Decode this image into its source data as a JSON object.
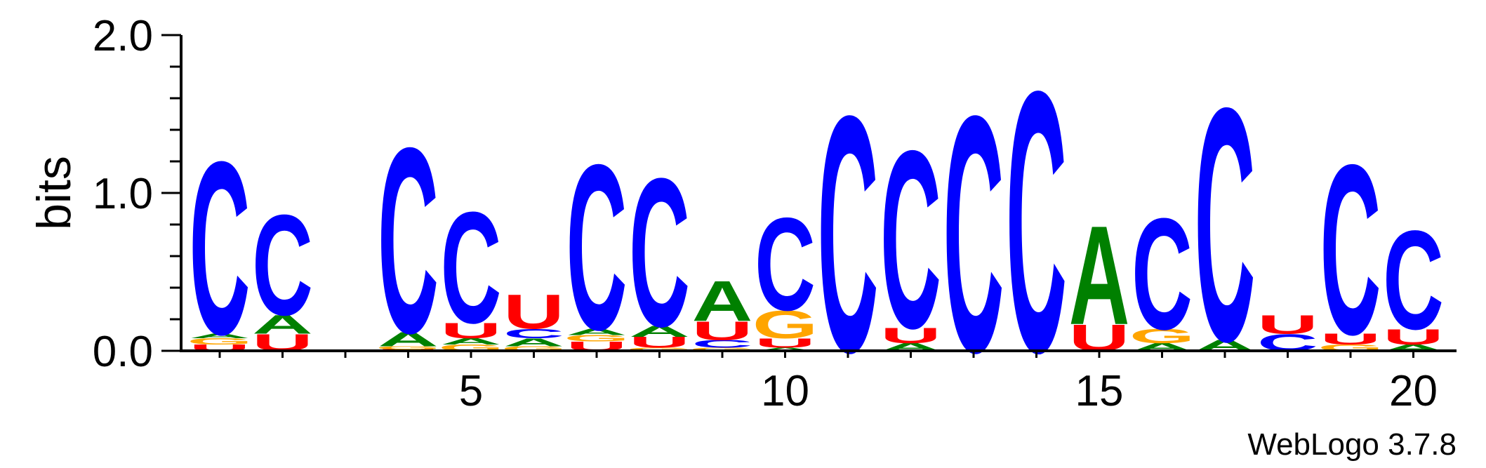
{
  "chart_data": {
    "type": "sequence-logo",
    "ylabel": "bits",
    "ylim": [
      0,
      2
    ],
    "y_ticks": [
      {
        "value": 0,
        "label": "0.0"
      },
      {
        "value": 1,
        "label": "1.0"
      },
      {
        "value": 2,
        "label": "2.0"
      }
    ],
    "x_range": [
      1,
      20
    ],
    "x_tick_labels": [
      {
        "position": 5,
        "label": "5"
      },
      {
        "position": 10,
        "label": "10"
      },
      {
        "position": 15,
        "label": "15"
      },
      {
        "position": 20,
        "label": "20"
      }
    ],
    "colors": {
      "A": "#008000",
      "C": "#0000ff",
      "G": "#ffa500",
      "U": "#ff0000"
    },
    "positions": [
      {
        "pos": 1,
        "stack": [
          [
            "U",
            0.04
          ],
          [
            "G",
            0.04
          ],
          [
            "A",
            0.03
          ],
          [
            "C",
            1.12
          ]
        ]
      },
      {
        "pos": 2,
        "stack": [
          [
            "U",
            0.11
          ],
          [
            "A",
            0.12
          ],
          [
            "C",
            0.65
          ]
        ]
      },
      {
        "pos": 3,
        "stack": []
      },
      {
        "pos": 4,
        "stack": [
          [
            "U",
            0.01
          ],
          [
            "G",
            0.02
          ],
          [
            "A",
            0.09
          ],
          [
            "C",
            1.2
          ]
        ]
      },
      {
        "pos": 5,
        "stack": [
          [
            "G",
            0.04
          ],
          [
            "A",
            0.04
          ],
          [
            "U",
            0.1
          ],
          [
            "C",
            0.72
          ]
        ]
      },
      {
        "pos": 6,
        "stack": [
          [
            "G",
            0.03
          ],
          [
            "A",
            0.05
          ],
          [
            "C",
            0.06
          ],
          [
            "U",
            0.22
          ]
        ]
      },
      {
        "pos": 7,
        "stack": [
          [
            "U",
            0.06
          ],
          [
            "G",
            0.04
          ],
          [
            "A",
            0.04
          ],
          [
            "C",
            1.07
          ]
        ]
      },
      {
        "pos": 8,
        "stack": [
          [
            "G",
            0.02
          ],
          [
            "U",
            0.07
          ],
          [
            "A",
            0.07
          ],
          [
            "C",
            0.96
          ]
        ]
      },
      {
        "pos": 9,
        "stack": [
          [
            "G",
            0.02
          ],
          [
            "C",
            0.05
          ],
          [
            "U",
            0.12
          ],
          [
            "A",
            0.26
          ]
        ]
      },
      {
        "pos": 10,
        "stack": [
          [
            "A",
            0.02
          ],
          [
            "U",
            0.06
          ],
          [
            "G",
            0.18
          ],
          [
            "C",
            0.6
          ]
        ]
      },
      {
        "pos": 11,
        "stack": [
          [
            "C",
            1.53
          ]
        ]
      },
      {
        "pos": 12,
        "stack": [
          [
            "A",
            0.05
          ],
          [
            "U",
            0.1
          ],
          [
            "C",
            1.15
          ]
        ]
      },
      {
        "pos": 13,
        "stack": [
          [
            "C",
            1.53
          ]
        ]
      },
      {
        "pos": 14,
        "stack": [
          [
            "C",
            1.69
          ]
        ]
      },
      {
        "pos": 15,
        "stack": [
          [
            "U",
            0.17
          ],
          [
            "A",
            0.64
          ]
        ]
      },
      {
        "pos": 16,
        "stack": [
          [
            "A",
            0.05
          ],
          [
            "G",
            0.09
          ],
          [
            "C",
            0.72
          ]
        ]
      },
      {
        "pos": 17,
        "stack": [
          [
            "A",
            0.07
          ],
          [
            "C",
            1.51
          ]
        ]
      },
      {
        "pos": 18,
        "stack": [
          [
            "C",
            0.11
          ],
          [
            "U",
            0.12
          ]
        ]
      },
      {
        "pos": 19,
        "stack": [
          [
            "G",
            0.04
          ],
          [
            "U",
            0.07
          ],
          [
            "C",
            1.1
          ]
        ]
      },
      {
        "pos": 20,
        "stack": [
          [
            "A",
            0.04
          ],
          [
            "U",
            0.1
          ],
          [
            "C",
            0.64
          ]
        ]
      }
    ]
  },
  "footer": {
    "credit": "WebLogo 3.7.8"
  }
}
